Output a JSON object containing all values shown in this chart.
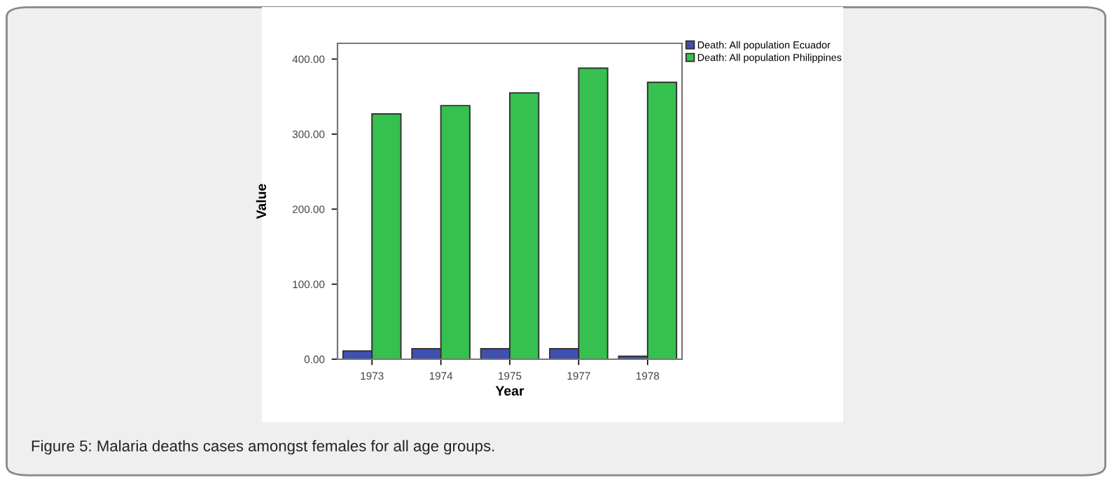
{
  "chart_data": {
    "type": "bar",
    "xlabel": "Year",
    "ylabel": "Value",
    "categories": [
      "1973",
      "1974",
      "1975",
      "1977",
      "1978"
    ],
    "series": [
      {
        "name": "Death: All population Ecuador",
        "color": "#3f51b0",
        "values": [
          11,
          14,
          14,
          14,
          4
        ]
      },
      {
        "name": "Death: All population Philippines",
        "color": "#36c04f",
        "values": [
          327,
          338,
          355,
          388,
          369
        ]
      }
    ],
    "ylim": [
      0,
      421
    ],
    "yticks": [
      {
        "value": 0,
        "label": "0.00"
      },
      {
        "value": 100,
        "label": "100.00"
      },
      {
        "value": 200,
        "label": "200.00"
      },
      {
        "value": 300,
        "label": "300.00"
      },
      {
        "value": 400,
        "label": "400.00"
      }
    ],
    "grid": false,
    "legend": "top right",
    "annotations": [
      "Figure 5: Malaria deaths cases amongst females for all age groups."
    ]
  }
}
